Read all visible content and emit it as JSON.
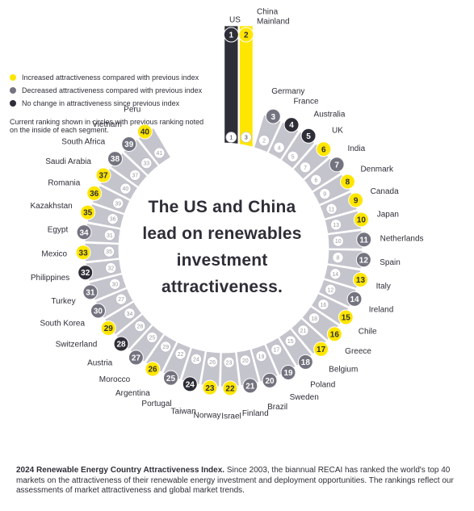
{
  "colors": {
    "increased": "#ffe600",
    "decreased": "#747480",
    "no_change": "#2e2e38",
    "segment": "#c4c4cd",
    "inner_ring": "#ffffff"
  },
  "legend": [
    {
      "key": "increased",
      "label": "Increased attractiveness compared with previous index"
    },
    {
      "key": "decreased",
      "label": "Decreased attractiveness compared with previous index"
    },
    {
      "key": "no_change",
      "label": "No change in attractiveness since previous index"
    }
  ],
  "note": "Current ranking shown in circles with previous ranking noted on the inside of each segment.",
  "headline": [
    "The US and China",
    "lead on renewables",
    "investment",
    "attractiveness."
  ],
  "footnote": {
    "bold": "2024 Renewable Energy Country Attractiveness Index.",
    "text": " Since 2003, the biannual RECAI has ranked the world's top 40 markets on the attractiveness of their renewable energy investment and deployment opportunities. The rankings reflect our assessments of market attractiveness and global market trends."
  },
  "countries": [
    {
      "rank": 1,
      "name": "US",
      "previous": "1",
      "status": "no_change"
    },
    {
      "rank": 2,
      "name": "China Mainland",
      "previous": "3",
      "status": "increased"
    },
    {
      "rank": 3,
      "name": "Germany",
      "previous": "2",
      "status": "decreased"
    },
    {
      "rank": 4,
      "name": "France",
      "previous": "4",
      "status": "no_change"
    },
    {
      "rank": 5,
      "name": "Australia",
      "previous": "5",
      "status": "no_change"
    },
    {
      "rank": 6,
      "name": "UK",
      "previous": "7",
      "status": "increased"
    },
    {
      "rank": 7,
      "name": "India",
      "previous": "6",
      "status": "decreased"
    },
    {
      "rank": 8,
      "name": "Denmark",
      "previous": "9",
      "status": "increased"
    },
    {
      "rank": 9,
      "name": "Canada",
      "previous": "11",
      "status": "increased"
    },
    {
      "rank": 10,
      "name": "Japan",
      "previous": "13",
      "status": "increased"
    },
    {
      "rank": 11,
      "name": "Netherlands",
      "previous": "10",
      "status": "decreased"
    },
    {
      "rank": 12,
      "name": "Spain",
      "previous": "8",
      "status": "decreased"
    },
    {
      "rank": 13,
      "name": "Italy",
      "previous": "14",
      "status": "increased"
    },
    {
      "rank": 14,
      "name": "Ireland",
      "previous": "12",
      "status": "decreased"
    },
    {
      "rank": 15,
      "name": "Chile",
      "previous": "16",
      "status": "increased"
    },
    {
      "rank": 16,
      "name": "Greece",
      "previous": "18",
      "status": "increased"
    },
    {
      "rank": 17,
      "name": "Belgium",
      "previous": "21",
      "status": "increased"
    },
    {
      "rank": 18,
      "name": "Poland",
      "previous": "15",
      "status": "decreased"
    },
    {
      "rank": 19,
      "name": "Sweden",
      "previous": "17",
      "status": "decreased"
    },
    {
      "rank": 20,
      "name": "Brazil",
      "previous": "19",
      "status": "decreased"
    },
    {
      "rank": 21,
      "name": "Finland",
      "previous": "20",
      "status": "decreased"
    },
    {
      "rank": 22,
      "name": "Israel",
      "previous": "23",
      "status": "increased"
    },
    {
      "rank": 23,
      "name": "Norway",
      "previous": "26",
      "status": "increased"
    },
    {
      "rank": 24,
      "name": "Taiwan",
      "previous": "24",
      "status": "no_change"
    },
    {
      "rank": 25,
      "name": "Portugal",
      "previous": "22",
      "status": "decreased"
    },
    {
      "rank": 26,
      "name": "Argentina",
      "previous": "29",
      "status": "increased"
    },
    {
      "rank": 27,
      "name": "Morocco",
      "previous": "25",
      "status": "decreased"
    },
    {
      "rank": 28,
      "name": "Austria",
      "previous": "28",
      "status": "no_change"
    },
    {
      "rank": 29,
      "name": "Switzerland",
      "previous": "34",
      "status": "increased"
    },
    {
      "rank": 30,
      "name": "South Korea",
      "previous": "27",
      "status": "decreased"
    },
    {
      "rank": 31,
      "name": "Turkey",
      "previous": "30",
      "status": "decreased"
    },
    {
      "rank": 32,
      "name": "Philippines",
      "previous": "32",
      "status": "no_change"
    },
    {
      "rank": 33,
      "name": "Mexico",
      "previous": "35",
      "status": "increased"
    },
    {
      "rank": 34,
      "name": "Egypt",
      "previous": "31",
      "status": "decreased"
    },
    {
      "rank": 35,
      "name": "Kazakhstan",
      "previous": "36",
      "status": "increased"
    },
    {
      "rank": 36,
      "name": "Romania",
      "previous": "39",
      "status": "increased"
    },
    {
      "rank": 37,
      "name": "Saudi Arabia",
      "previous": "40",
      "status": "increased"
    },
    {
      "rank": 38,
      "name": "South Africa",
      "previous": "37",
      "status": "decreased"
    },
    {
      "rank": 39,
      "name": "Vietnam",
      "previous": "33",
      "status": "decreased"
    },
    {
      "rank": 40,
      "name": "Peru",
      "previous": "41",
      "status": "increased"
    }
  ]
}
